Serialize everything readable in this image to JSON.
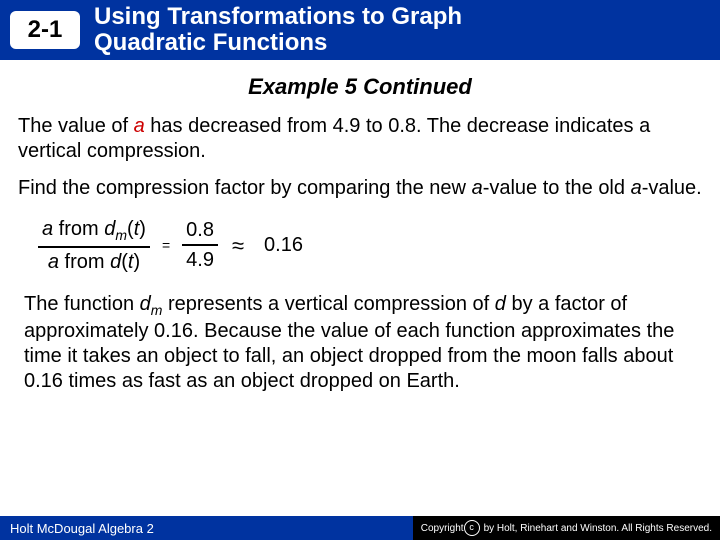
{
  "header": {
    "section": "2-1",
    "title_line1": "Using Transformations to Graph",
    "title_line2": "Quadratic Functions",
    "bg_color": "#0033a0",
    "text_color": "#ffffff"
  },
  "example_title": "Example 5 Continued",
  "paragraph1": {
    "prefix": "The value of ",
    "a": "a",
    "rest": " has decreased from 4.9 to 0.8. The decrease indicates a vertical compression."
  },
  "paragraph2": {
    "prefix": "Find the compression factor by comparing the new ",
    "a1": "a",
    "mid": "-value to the old ",
    "a2": "a",
    "suffix": "-value."
  },
  "ratio": {
    "top_prefix": "a",
    "top_mid": " from ",
    "top_d": "d",
    "top_sub": "m",
    "top_paren_open": "(",
    "top_t": "t",
    "top_paren_close": ")",
    "bot_prefix": "a",
    "bot_mid": " from ",
    "bot_d": "d",
    "bot_paren_open": "(",
    "bot_t": "t",
    "bot_paren_close": ")",
    "eq": "=",
    "num": "0.8",
    "den": "4.9",
    "approx": "≈",
    "result": "0.16"
  },
  "paragraph3": {
    "p1": "The function ",
    "d": "d",
    "sub": "m",
    "p2": " represents a vertical compression of ",
    "d2": "d",
    "p3": " by a factor of approximately 0.16. Because the value of each function approximates the time it takes an object to fall, an object dropped from the moon falls about 0.16 times as fast as an object dropped on Earth."
  },
  "footer": {
    "book": "Holt McDougal Algebra 2",
    "copyright_prefix": "Copyright ",
    "copyright_text": "by Holt, Rinehart and Winston. All Rights Reserved."
  },
  "colors": {
    "a_var": "#cc0000",
    "text": "#000000",
    "bg": "#ffffff"
  }
}
